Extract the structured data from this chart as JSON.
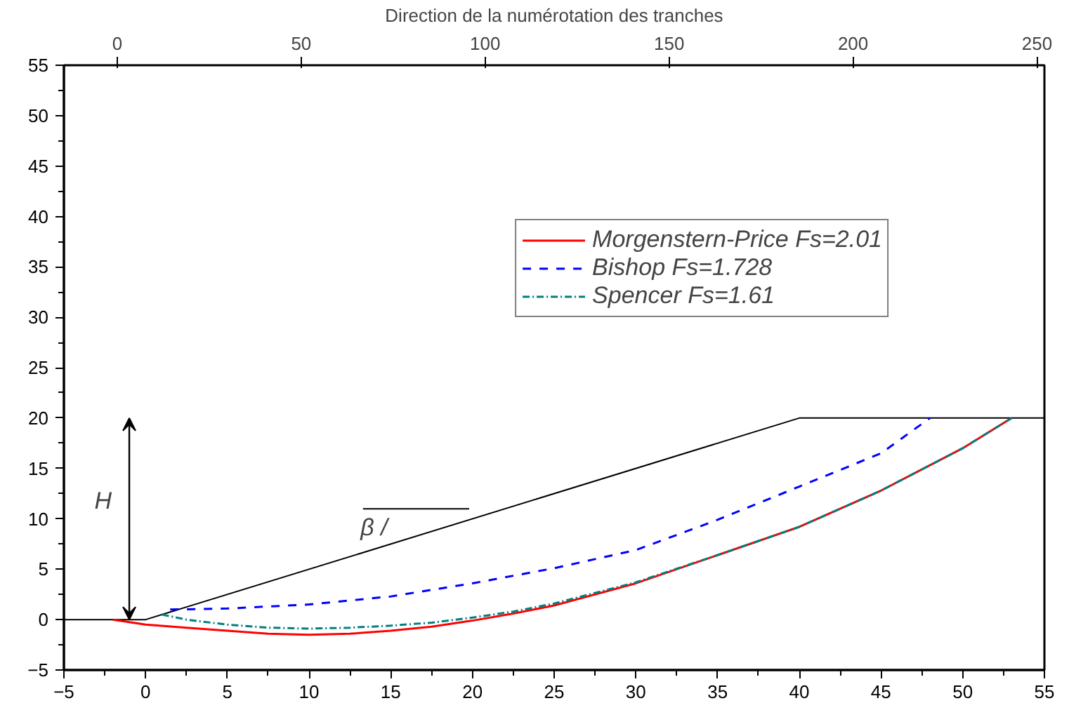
{
  "chart_data": {
    "type": "line",
    "xlim": [
      -5,
      55
    ],
    "xticks": [
      -5,
      0,
      5,
      10,
      15,
      20,
      25,
      30,
      35,
      40,
      45,
      50,
      55
    ],
    "ylim": [
      -5,
      55
    ],
    "yticks": [
      -5,
      0,
      5,
      10,
      15,
      20,
      25,
      30,
      35,
      40,
      45,
      50,
      55
    ],
    "x2lim": [
      -14.5,
      252
    ],
    "x2ticks": [
      0,
      50,
      100,
      150,
      200,
      250
    ],
    "x2label": "Direction de la numérotation des tranches",
    "grid": false,
    "legend": "top right",
    "marker": "none",
    "series": [
      {
        "color": "#000000",
        "line_style": "solid",
        "x": [
          -5,
          0,
          40,
          55
        ],
        "values": [
          0,
          0,
          20,
          20
        ]
      },
      {
        "name": "Morgenstern-Price Fs=2.01",
        "color": "#ff0000",
        "line_style": "solid",
        "x": [
          -2,
          0,
          2.5,
          5,
          7.5,
          10,
          12.5,
          15,
          17.5,
          20,
          22.5,
          25,
          30,
          35,
          40,
          45,
          50,
          53
        ],
        "values": [
          0,
          -0.5,
          -0.8,
          -1.1,
          -1.4,
          -1.5,
          -1.4,
          -1.1,
          -0.7,
          -0.1,
          0.6,
          1.4,
          3.6,
          6.4,
          9.2,
          12.8,
          17,
          20
        ]
      },
      {
        "name": "Bishop Fs=1.728",
        "color": "#0000ff",
        "line_style": "dashed",
        "x": [
          1.5,
          5,
          10,
          15,
          20,
          25,
          30,
          35,
          40,
          45,
          48
        ],
        "values": [
          1,
          1.1,
          1.5,
          2.3,
          3.6,
          5.1,
          6.9,
          9.9,
          13.2,
          16.5,
          20
        ]
      },
      {
        "name": "Spencer Fs=1.61",
        "color": "#008080",
        "line_style": "dashdot",
        "x": [
          1,
          2.5,
          5,
          7.5,
          10,
          12.5,
          15,
          17.5,
          20,
          22.5,
          25,
          30,
          35,
          40,
          45,
          50,
          53
        ],
        "values": [
          0.5,
          0,
          -0.5,
          -0.8,
          -0.9,
          -0.8,
          -0.6,
          -0.3,
          0.2,
          0.8,
          1.6,
          3.7,
          6.4,
          9.2,
          12.8,
          17,
          20
        ]
      }
    ],
    "annotations": [
      "H",
      "β /"
    ]
  }
}
